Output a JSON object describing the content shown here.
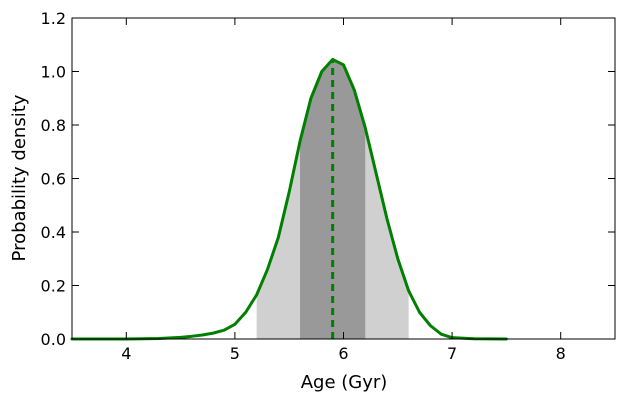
{
  "chart_data": {
    "type": "line",
    "title": "",
    "xlabel": "Age (Gyr)",
    "ylabel": "Probability density",
    "xlim": [
      3.5,
      8.5
    ],
    "ylim": [
      0.0,
      1.2
    ],
    "x_ticks": [
      4,
      5,
      6,
      7,
      8
    ],
    "x_tick_labels": [
      "4",
      "5",
      "6",
      "7",
      "8"
    ],
    "y_ticks": [
      0.0,
      0.2,
      0.4,
      0.6,
      0.8,
      1.0,
      1.2
    ],
    "y_tick_labels": [
      "0.0",
      "0.2",
      "0.4",
      "0.6",
      "0.8",
      "1.0",
      "1.2"
    ],
    "grid": false,
    "series": [
      {
        "color": "#008000",
        "x": [
          3.5,
          4.0,
          4.3,
          4.5,
          4.6,
          4.7,
          4.8,
          4.9,
          5.0,
          5.1,
          5.2,
          5.3,
          5.4,
          5.5,
          5.6,
          5.7,
          5.8,
          5.9,
          6.0,
          6.1,
          6.2,
          6.3,
          6.4,
          6.5,
          6.6,
          6.7,
          6.8,
          6.9,
          7.0,
          7.2,
          7.5
        ],
        "y": [
          0.0,
          0.0,
          0.002,
          0.006,
          0.01,
          0.015,
          0.022,
          0.033,
          0.055,
          0.1,
          0.165,
          0.26,
          0.38,
          0.55,
          0.74,
          0.9,
          1.0,
          1.045,
          1.025,
          0.93,
          0.79,
          0.62,
          0.45,
          0.3,
          0.18,
          0.1,
          0.05,
          0.018,
          0.005,
          0.001,
          0.0
        ]
      }
    ],
    "shaded_intervals": [
      {
        "x": [
          5.2,
          6.6
        ],
        "color": "#d0d0d0"
      },
      {
        "x": [
          5.6,
          6.2
        ],
        "color": "#999999"
      }
    ],
    "vertical_line": {
      "x": 5.9,
      "y": 1.045,
      "color": "#008000",
      "style": "dashed"
    }
  }
}
